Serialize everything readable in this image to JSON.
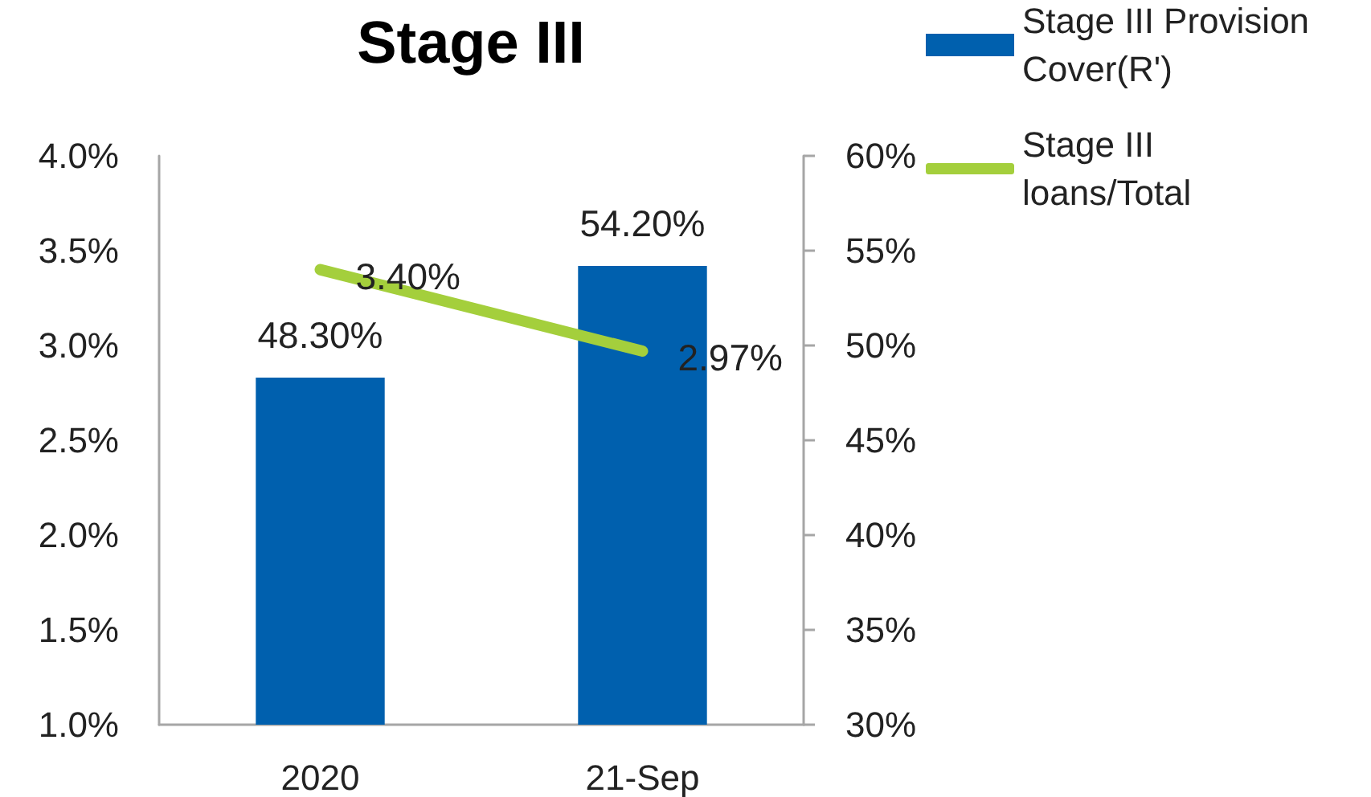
{
  "chart_data": {
    "type": "bar",
    "title": "Stage III",
    "categories": [
      "2020",
      "21-Sep"
    ],
    "series": [
      {
        "name": "Stage III Provision Cover(R')",
        "axis": "y2",
        "color": "#0060ae",
        "values": [
          48.3,
          54.2
        ],
        "value_labels": [
          "48.30%",
          "54.20%"
        ]
      },
      {
        "name": "Stage III loans/Total",
        "type": "line",
        "color": "#a4cf3c",
        "values": [
          3.4,
          2.97
        ],
        "value_labels": [
          "3.40%",
          "2.97%"
        ],
        "marker": "none",
        "line_style": "solid"
      }
    ],
    "ylim": [
      1,
      4
    ],
    "yticks": [
      {
        "value": 1,
        "label": "1.0%"
      },
      {
        "value": 1.5,
        "label": "1.5%"
      },
      {
        "value": 2,
        "label": "2.0%"
      },
      {
        "value": 2.5,
        "label": "2.5%"
      },
      {
        "value": 3,
        "label": "3.0%"
      },
      {
        "value": 3.5,
        "label": "3.5%"
      },
      {
        "value": 4,
        "label": "4.0%"
      }
    ],
    "y2lim": [
      30,
      60
    ],
    "y2ticks": [
      {
        "value": 30,
        "label": "30%"
      },
      {
        "value": 35,
        "label": "35%"
      },
      {
        "value": 40,
        "label": "40%"
      },
      {
        "value": 45,
        "label": "45%"
      },
      {
        "value": 50,
        "label": "50%"
      },
      {
        "value": 55,
        "label": "55%"
      },
      {
        "value": 60,
        "label": "60%"
      }
    ],
    "legend": "top right",
    "grid": false
  }
}
